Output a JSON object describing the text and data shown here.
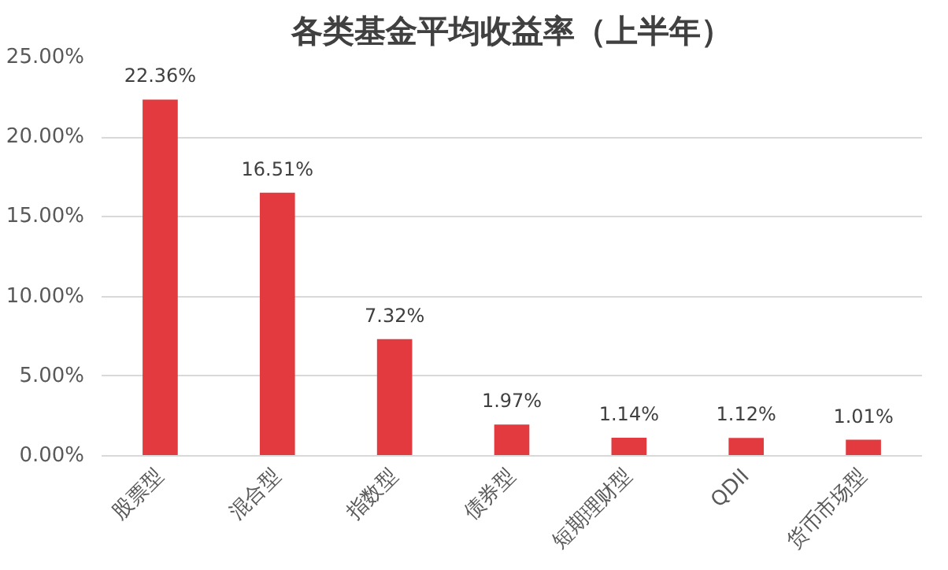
{
  "chart_data": {
    "type": "bar",
    "title": "各类基金平均收益率（上半年）",
    "categories": [
      "股票型",
      "混合型",
      "指数型",
      "债券型",
      "短期理财型",
      "QDII",
      "货币市场型"
    ],
    "values": [
      22.36,
      16.51,
      7.32,
      1.97,
      1.14,
      1.12,
      1.01
    ],
    "value_labels": [
      "22.36%",
      "16.51%",
      "7.32%",
      "1.97%",
      "1.14%",
      "1.12%",
      "1.01%"
    ],
    "color": "#e23a3e",
    "ylim": [
      0,
      25
    ],
    "yticks": [
      {
        "value": 0,
        "label": "0.00%"
      },
      {
        "value": 5,
        "label": "5.00%"
      },
      {
        "value": 10,
        "label": "10.00%"
      },
      {
        "value": 15,
        "label": "15.00%"
      },
      {
        "value": 20,
        "label": "20.00%"
      },
      {
        "value": 25,
        "label": "25.00%"
      }
    ],
    "grid": "y"
  }
}
